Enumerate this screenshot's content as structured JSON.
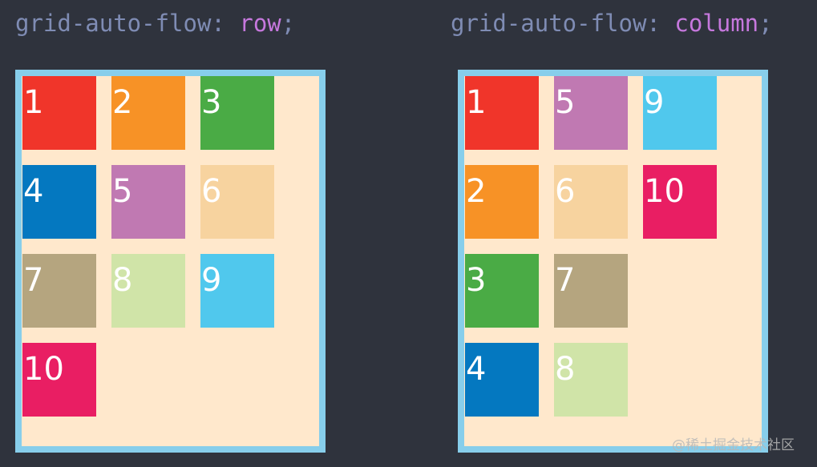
{
  "left": {
    "property": "grid-auto-flow: ",
    "value": "row",
    "semi": ";",
    "items": [
      {
        "label": "1",
        "color": "#f0352a"
      },
      {
        "label": "2",
        "color": "#f79226"
      },
      {
        "label": "3",
        "color": "#4aab45"
      },
      {
        "label": "4",
        "color": "#0478c0"
      },
      {
        "label": "5",
        "color": "#c079b2"
      },
      {
        "label": "6",
        "color": "#f7d39f"
      },
      {
        "label": "7",
        "color": "#b5a57f"
      },
      {
        "label": "8",
        "color": "#d0e4a8"
      },
      {
        "label": "9",
        "color": "#50c8ed"
      },
      {
        "label": "10",
        "color": "#e91e63"
      }
    ]
  },
  "right": {
    "property": "grid-auto-flow: ",
    "value": "column",
    "semi": ";",
    "items": [
      {
        "label": "1",
        "color": "#f0352a"
      },
      {
        "label": "2",
        "color": "#f79226"
      },
      {
        "label": "3",
        "color": "#4aab45"
      },
      {
        "label": "4",
        "color": "#0478c0"
      },
      {
        "label": "5",
        "color": "#c079b2"
      },
      {
        "label": "6",
        "color": "#f7d39f"
      },
      {
        "label": "7",
        "color": "#b5a57f"
      },
      {
        "label": "8",
        "color": "#d0e4a8"
      },
      {
        "label": "9",
        "color": "#50c8ed"
      },
      {
        "label": "10",
        "color": "#e91e63"
      }
    ]
  },
  "watermark": "@稀土掘金技术社区"
}
